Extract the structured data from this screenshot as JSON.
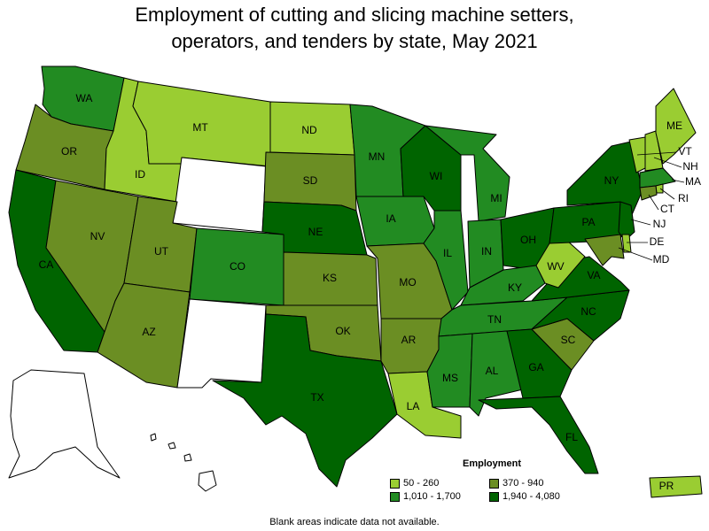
{
  "title_line1": "Employment of cutting and slicing machine setters,",
  "title_line2": "operators, and tenders by state, May 2021",
  "legend": {
    "title": "Employment",
    "items": [
      {
        "label": "50 - 260",
        "color": "#9acd32"
      },
      {
        "label": "370 - 940",
        "color": "#6b8e23"
      },
      {
        "label": "1,010 - 1,700",
        "color": "#228b22"
      },
      {
        "label": "1,940 - 4,080",
        "color": "#006400"
      }
    ]
  },
  "note": "Blank areas indicate data not available.",
  "states": [
    {
      "abbr": "WA",
      "class": 2
    },
    {
      "abbr": "OR",
      "class": 1
    },
    {
      "abbr": "CA",
      "class": 3
    },
    {
      "abbr": "ID",
      "class": 0
    },
    {
      "abbr": "NV",
      "class": 1
    },
    {
      "abbr": "MT",
      "class": 0
    },
    {
      "abbr": "WY",
      "class": -1
    },
    {
      "abbr": "UT",
      "class": 1
    },
    {
      "abbr": "AZ",
      "class": 1
    },
    {
      "abbr": "CO",
      "class": 2
    },
    {
      "abbr": "NM",
      "class": -1
    },
    {
      "abbr": "ND",
      "class": 0
    },
    {
      "abbr": "SD",
      "class": 1
    },
    {
      "abbr": "NE",
      "class": 3
    },
    {
      "abbr": "KS",
      "class": 1
    },
    {
      "abbr": "OK",
      "class": 1
    },
    {
      "abbr": "TX",
      "class": 3
    },
    {
      "abbr": "MN",
      "class": 2
    },
    {
      "abbr": "IA",
      "class": 2
    },
    {
      "abbr": "MO",
      "class": 1
    },
    {
      "abbr": "AR",
      "class": 1
    },
    {
      "abbr": "LA",
      "class": 0
    },
    {
      "abbr": "WI",
      "class": 3
    },
    {
      "abbr": "IL",
      "class": 2
    },
    {
      "abbr": "MI",
      "class": 2
    },
    {
      "abbr": "IN",
      "class": 2
    },
    {
      "abbr": "OH",
      "class": 3
    },
    {
      "abbr": "KY",
      "class": 2
    },
    {
      "abbr": "TN",
      "class": 2
    },
    {
      "abbr": "MS",
      "class": 2
    },
    {
      "abbr": "AL",
      "class": 2
    },
    {
      "abbr": "GA",
      "class": 3
    },
    {
      "abbr": "FL",
      "class": 3
    },
    {
      "abbr": "SC",
      "class": 1
    },
    {
      "abbr": "NC",
      "class": 3
    },
    {
      "abbr": "VA",
      "class": 3
    },
    {
      "abbr": "WV",
      "class": 0
    },
    {
      "abbr": "PA",
      "class": 3
    },
    {
      "abbr": "NY",
      "class": 3
    },
    {
      "abbr": "VT",
      "class": 0
    },
    {
      "abbr": "NH",
      "class": 0
    },
    {
      "abbr": "ME",
      "class": 0
    },
    {
      "abbr": "MA",
      "class": 2
    },
    {
      "abbr": "RI",
      "class": 0
    },
    {
      "abbr": "CT",
      "class": 1
    },
    {
      "abbr": "NJ",
      "class": 3
    },
    {
      "abbr": "DE",
      "class": 0
    },
    {
      "abbr": "MD",
      "class": 1
    },
    {
      "abbr": "PR",
      "class": 0
    },
    {
      "abbr": "AK",
      "class": -1
    },
    {
      "abbr": "HI",
      "class": -1
    }
  ]
}
